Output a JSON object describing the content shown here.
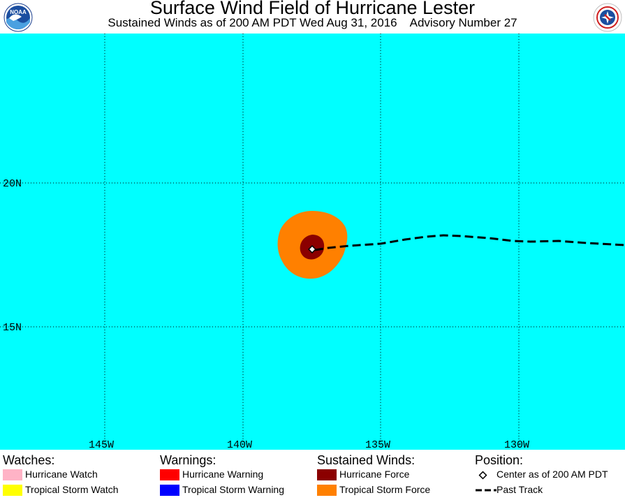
{
  "title": "Surface Wind Field of Hurricane Lester",
  "subtitle_time": "Sustained Winds as of 200 AM PDT Wed Aug 31, 2016",
  "subtitle_advisory": "Advisory Number 27",
  "logos": {
    "left": {
      "name": "noaa-logo",
      "text": "NOAA"
    },
    "right": {
      "name": "nws-logo",
      "text": "NATIONAL WEATHER SERVICE"
    }
  },
  "map": {
    "ocean_color": "#00ffff",
    "latitude_labels": [
      "20N",
      "15N"
    ],
    "longitude_labels": [
      "145W",
      "140W",
      "135W",
      "130W"
    ],
    "hurricane_force_color": "#8b0000",
    "tropical_storm_force_color": "#ff8000",
    "center_marker": "diamond-icon"
  },
  "legend": {
    "watches": {
      "heading": "Watches:",
      "items": [
        {
          "label": "Hurricane Watch",
          "color": "#ffb3c6"
        },
        {
          "label": "Tropical Storm Watch",
          "color": "#ffff00"
        }
      ]
    },
    "warnings": {
      "heading": "Warnings:",
      "items": [
        {
          "label": "Hurricane Warning",
          "color": "#ff0000"
        },
        {
          "label": "Tropical Storm Warning",
          "color": "#0000ff"
        }
      ]
    },
    "winds": {
      "heading": "Sustained Winds:",
      "items": [
        {
          "label": "Hurricane Force",
          "color": "#8b0000"
        },
        {
          "label": "Tropical Storm Force",
          "color": "#ff8000"
        }
      ]
    },
    "position": {
      "heading": "Position:",
      "center_label": "Center as of 200 AM PDT",
      "track_label": "Past Track"
    }
  }
}
